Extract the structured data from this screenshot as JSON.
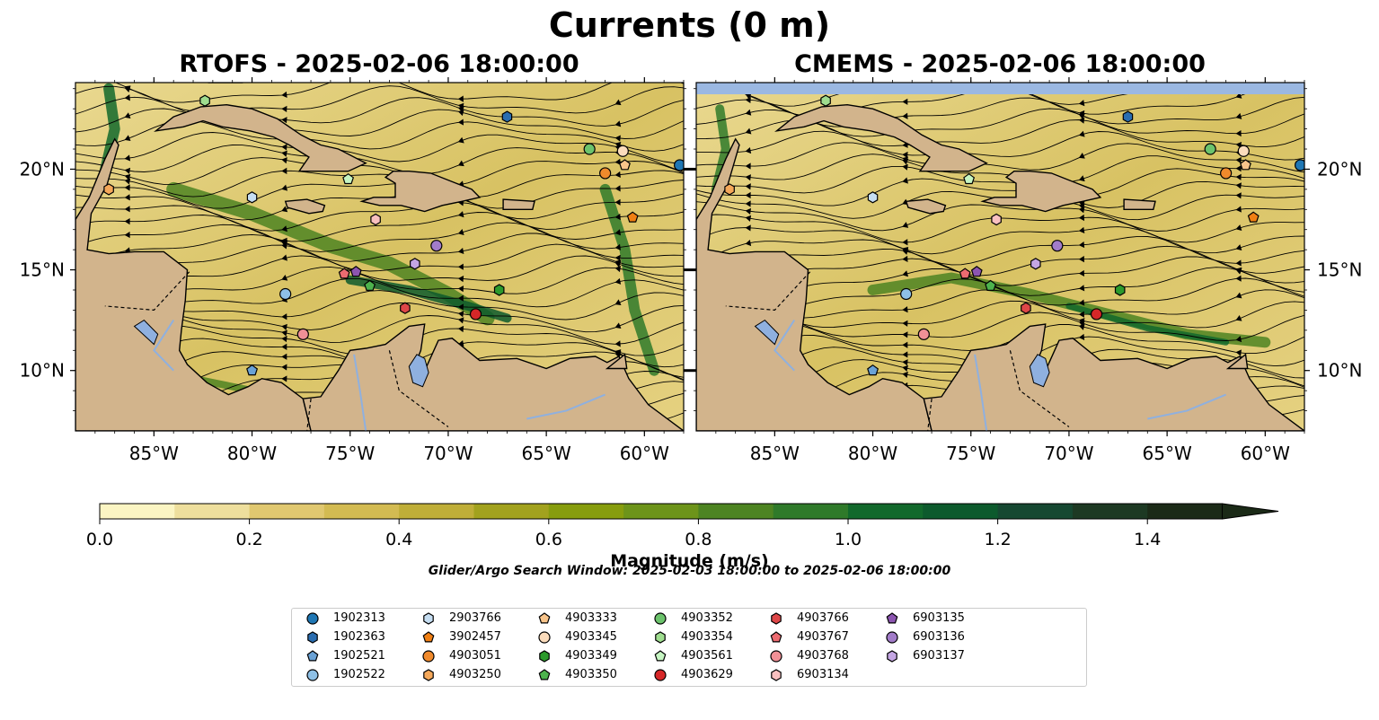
{
  "title": "Currents (0 m)",
  "panels": [
    {
      "title": "RTOFS - 2025-02-06 18:00:00"
    },
    {
      "title": "CMEMS - 2025-02-06 18:00:00"
    }
  ],
  "map": {
    "lon_range": [
      -89,
      -58
    ],
    "lat_range": [
      7,
      24.3
    ],
    "lon_ticks": [
      "85°W",
      "80°W",
      "75°W",
      "70°W",
      "65°W",
      "60°W"
    ],
    "lat_ticks": [
      "20°N",
      "15°N",
      "10°N"
    ],
    "colors": {
      "land": "#d2b48c",
      "water_body": "#8fb0df",
      "coast": "#000000"
    }
  },
  "colorbar": {
    "label": "Magnitude (m/s)",
    "min": 0.0,
    "max": 1.5,
    "extend": "max",
    "ticks": [
      "0.0",
      "0.2",
      "0.4",
      "0.6",
      "0.8",
      "1.0",
      "1.2",
      "1.4"
    ],
    "colors": [
      "#fbf5c3",
      "#eedf9d",
      "#e0c870",
      "#d3bb52",
      "#bfae38",
      "#a2a21e",
      "#879d0e",
      "#6d941a",
      "#4d8422",
      "#2f7a2a",
      "#12692c",
      "#0d5a2d",
      "#164831",
      "#1d3923",
      "#1b2a17"
    ]
  },
  "search_window": "Glider/Argo Search Window: 2025-02-03 18:00:00 to 2025-02-06 18:00:00",
  "legend": [
    {
      "id": "1902313",
      "marker": "circle",
      "color": "#1f77b4"
    },
    {
      "id": "1902363",
      "marker": "hexagon",
      "color": "#2a6db0"
    },
    {
      "id": "1902521",
      "marker": "pentagon",
      "color": "#6aa2d6"
    },
    {
      "id": "1902522",
      "marker": "circle",
      "color": "#8ec0e6"
    },
    {
      "id": "2903766",
      "marker": "hexagon",
      "color": "#c6def2"
    },
    {
      "id": "3902457",
      "marker": "pentagon",
      "color": "#f07f13"
    },
    {
      "id": "4903051",
      "marker": "circle",
      "color": "#f08a2c"
    },
    {
      "id": "4903250",
      "marker": "hexagon",
      "color": "#f5a85a"
    },
    {
      "id": "4903333",
      "marker": "pentagon",
      "color": "#f8c48a"
    },
    {
      "id": "4903345",
      "marker": "circle",
      "color": "#fbdcbc"
    },
    {
      "id": "4903349",
      "marker": "hexagon",
      "color": "#2c9a2c"
    },
    {
      "id": "4903350",
      "marker": "pentagon",
      "color": "#4db34d"
    },
    {
      "id": "4903352",
      "marker": "circle",
      "color": "#6cc36c"
    },
    {
      "id": "4903354",
      "marker": "hexagon",
      "color": "#9fdd8f"
    },
    {
      "id": "4903561",
      "marker": "pentagon",
      "color": "#c6f5c2"
    },
    {
      "id": "4903629",
      "marker": "circle",
      "color": "#d62728"
    },
    {
      "id": "4903766",
      "marker": "hexagon",
      "color": "#de4748"
    },
    {
      "id": "4903767",
      "marker": "pentagon",
      "color": "#ec6b70"
    },
    {
      "id": "4903768",
      "marker": "circle",
      "color": "#f09096"
    },
    {
      "id": "6903134",
      "marker": "hexagon",
      "color": "#f9c0c0"
    },
    {
      "id": "6903135",
      "marker": "pentagon",
      "color": "#8c55b0"
    },
    {
      "id": "6903136",
      "marker": "circle",
      "color": "#a27cc9"
    },
    {
      "id": "6903137",
      "marker": "hexagon",
      "color": "#c4a6e3"
    }
  ],
  "floats": [
    {
      "id": "1902313",
      "lon": -58.2,
      "lat": 20.2
    },
    {
      "id": "1902363",
      "lon": -67.0,
      "lat": 22.6
    },
    {
      "id": "1902521",
      "lon": -80.0,
      "lat": 10.0
    },
    {
      "id": "1902522",
      "lon": -78.3,
      "lat": 13.8
    },
    {
      "id": "2903766",
      "lon": -80.0,
      "lat": 18.6
    },
    {
      "id": "3902457",
      "lon": -60.6,
      "lat": 17.6
    },
    {
      "id": "4903051",
      "lon": -62.0,
      "lat": 19.8
    },
    {
      "id": "4903250",
      "lon": -87.3,
      "lat": 19.0
    },
    {
      "id": "4903333",
      "lon": -61.0,
      "lat": 20.2
    },
    {
      "id": "4903345",
      "lon": -61.1,
      "lat": 20.9
    },
    {
      "id": "4903349",
      "lon": -67.4,
      "lat": 14.0
    },
    {
      "id": "4903350",
      "lon": -74.0,
      "lat": 14.2
    },
    {
      "id": "4903352",
      "lon": -62.8,
      "lat": 21.0
    },
    {
      "id": "4903354",
      "lon": -82.4,
      "lat": 23.4
    },
    {
      "id": "4903561",
      "lon": -75.1,
      "lat": 19.5
    },
    {
      "id": "4903629",
      "lon": -68.6,
      "lat": 12.8
    },
    {
      "id": "4903766",
      "lon": -72.2,
      "lat": 13.1
    },
    {
      "id": "4903767",
      "lon": -75.3,
      "lat": 14.8
    },
    {
      "id": "4903768",
      "lon": -77.4,
      "lat": 11.8
    },
    {
      "id": "6903134",
      "lon": -73.7,
      "lat": 17.5
    },
    {
      "id": "6903135",
      "lon": -74.7,
      "lat": 14.9
    },
    {
      "id": "6903136",
      "lon": -70.6,
      "lat": 16.2
    },
    {
      "id": "6903137",
      "lon": -71.7,
      "lat": 15.3
    }
  ]
}
